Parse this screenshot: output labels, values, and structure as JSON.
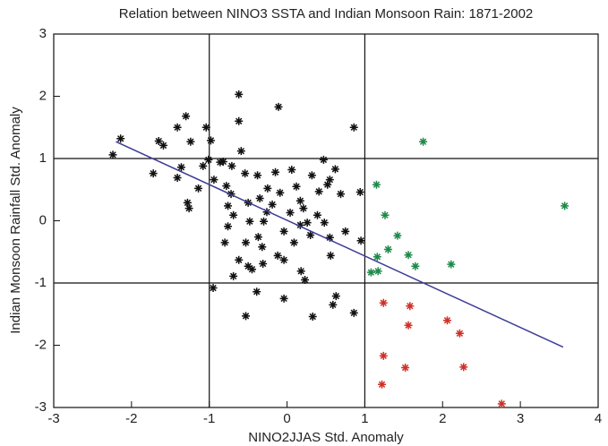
{
  "chart_data": {
    "type": "scatter",
    "title": "Relation between NINO3 SSTA and Indian Monsoon Rain:  1871-2002",
    "x_label": "NINO2JJAS Std. Anomaly",
    "y_label": "Indian Monsoon Rainfall Std. Anomaly",
    "xlim": [
      -3,
      4
    ],
    "ylim": [
      -3,
      3
    ],
    "xticks": [
      -3,
      -2,
      -1,
      0,
      1,
      2,
      3,
      4
    ],
    "yticks": [
      -3,
      -2,
      -1,
      0,
      1,
      2,
      3
    ],
    "reference_lines": {
      "x": [
        -1,
        1
      ],
      "y": [
        -1,
        1
      ]
    },
    "trend_line": {
      "x": [
        -2.2,
        3.55
      ],
      "y": [
        1.27,
        -2.03
      ],
      "color": "#3c3c96"
    },
    "series": [
      {
        "color": "#111111",
        "x": [
          -2.14,
          -2.24,
          -1.65,
          -1.59,
          -1.72,
          -1.41,
          -1.3,
          -1.24,
          -1.36,
          -1.41,
          -1.28,
          -1.26,
          -1.14,
          -1.08,
          -1.04,
          -0.98,
          -1.01,
          -0.94,
          -0.86,
          -0.82,
          -0.78,
          -0.72,
          -0.69,
          -0.76,
          -0.8,
          -0.69,
          -0.95,
          -0.62,
          -0.62,
          -0.59,
          -0.54,
          -0.5,
          -0.48,
          -0.53,
          -0.5,
          -0.53,
          -0.39,
          -0.38,
          -0.35,
          -0.3,
          -0.32,
          -0.31,
          -0.25,
          -0.19,
          -0.26,
          -0.15,
          -0.11,
          -0.09,
          -0.04,
          -0.04,
          -0.12,
          -0.04,
          0.06,
          0.04,
          0.09,
          0.12,
          0.17,
          0.17,
          0.18,
          0.23,
          0.33,
          0.32,
          0.41,
          0.47,
          0.48,
          0.52,
          0.55,
          0.56,
          0.59,
          0.62,
          0.69,
          0.75,
          0.63,
          0.86,
          0.86,
          0.94,
          0.95,
          0.21,
          -0.71,
          -0.62,
          -0.45,
          -0.37,
          -0.76,
          0.3,
          0.39,
          0.26,
          0.55
        ],
        "y": [
          1.32,
          1.06,
          1.28,
          1.21,
          0.76,
          1.5,
          1.68,
          1.27,
          0.86,
          0.69,
          0.29,
          0.2,
          0.52,
          0.88,
          1.5,
          1.29,
          0.98,
          0.66,
          0.94,
          0.95,
          0.56,
          0.43,
          0.09,
          -0.09,
          -0.35,
          -0.89,
          -1.08,
          2.03,
          1.6,
          1.12,
          0.76,
          0.29,
          -0.01,
          -0.35,
          -0.73,
          -1.53,
          -1.14,
          0.73,
          0.36,
          -0.01,
          -0.42,
          -0.69,
          0.52,
          0.26,
          0.14,
          0.78,
          1.83,
          0.45,
          -0.17,
          -0.63,
          -0.56,
          -1.25,
          0.82,
          0.13,
          -0.35,
          0.55,
          0.32,
          -0.07,
          -0.81,
          -0.95,
          -1.54,
          0.73,
          0.47,
          0.98,
          -0.03,
          0.58,
          0.66,
          -0.56,
          -1.35,
          0.83,
          0.43,
          -0.17,
          -1.21,
          1.5,
          -1.48,
          0.46,
          -0.32,
          0.2,
          0.88,
          -0.63,
          -0.78,
          -0.26,
          0.24,
          -0.23,
          0.09,
          -0.03,
          -0.27
        ]
      },
      {
        "color": "#1e8a4a",
        "x": [
          1.75,
          3.57,
          1.15,
          1.26,
          1.42,
          1.3,
          1.56,
          1.65,
          2.11,
          1.16,
          1.17,
          1.08
        ],
        "y": [
          1.27,
          0.24,
          0.58,
          0.09,
          -0.24,
          -0.46,
          -0.55,
          -0.73,
          -0.7,
          -0.58,
          -0.81,
          -0.83
        ]
      },
      {
        "color": "#d03028",
        "x": [
          1.24,
          1.58,
          1.56,
          2.06,
          2.22,
          1.24,
          1.52,
          2.27,
          1.22,
          2.76
        ],
        "y": [
          -1.32,
          -1.37,
          -1.68,
          -1.6,
          -1.81,
          -2.17,
          -2.36,
          -2.35,
          -2.63,
          -2.94
        ]
      }
    ]
  }
}
